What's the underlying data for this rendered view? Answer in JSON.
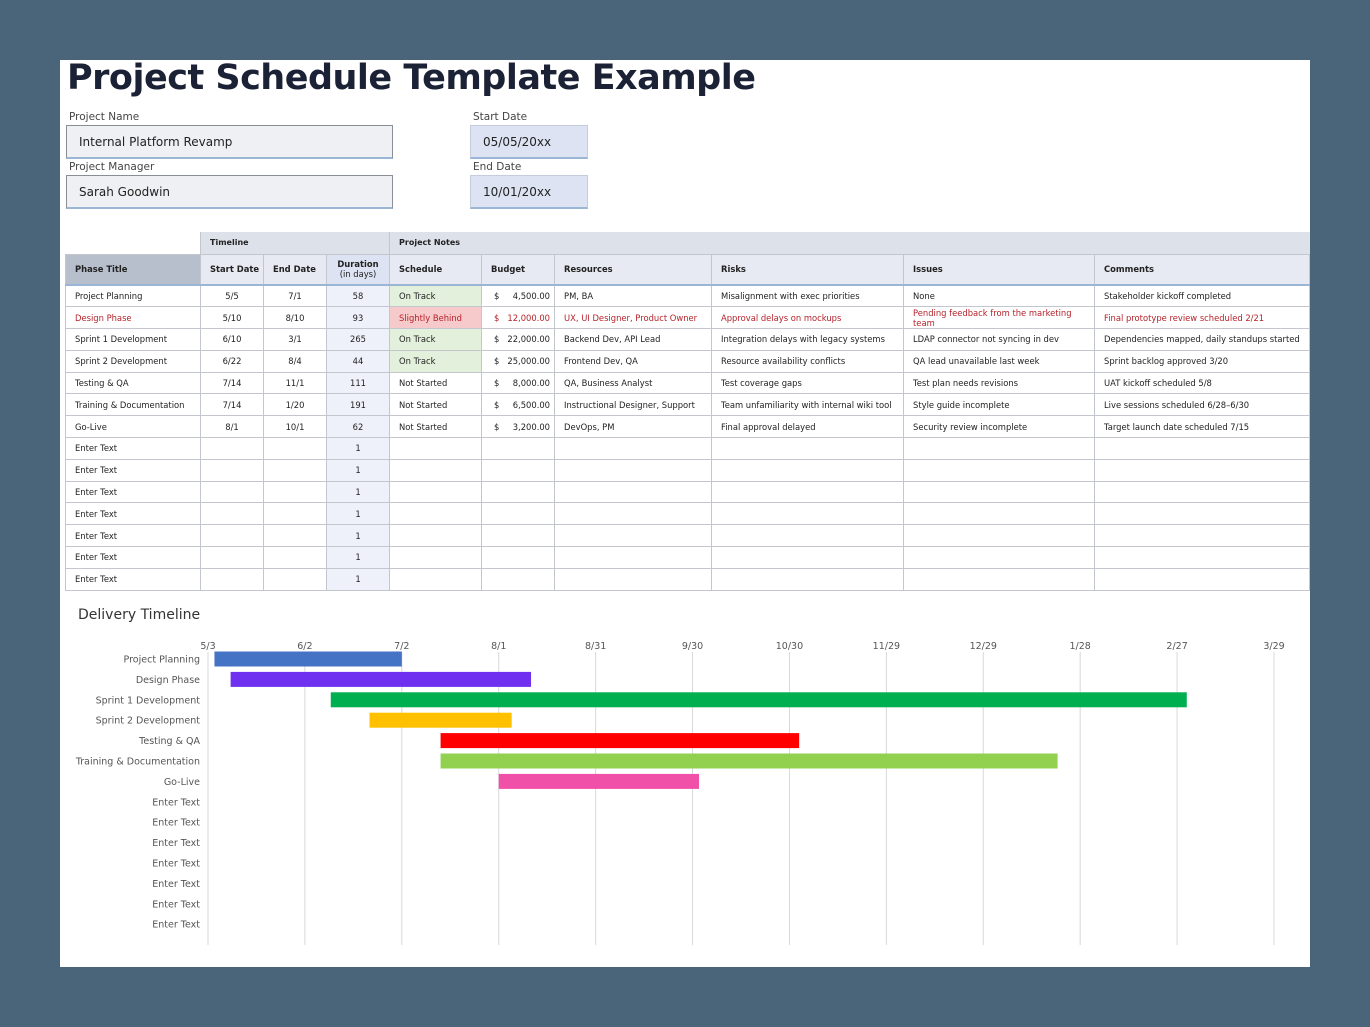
{
  "title": "Project Schedule Template Example",
  "fields": {
    "project_name_label": "Project Name",
    "project_name": "Internal Platform Revamp",
    "project_manager_label": "Project Manager",
    "project_manager": "Sarah Goodwin",
    "start_date_label": "Start Date",
    "start_date": "05/05/20xx",
    "end_date_label": "End Date",
    "end_date": "10/01/20xx"
  },
  "table": {
    "group_timeline": "Timeline",
    "group_notes": "Project Notes",
    "headers": {
      "phase": "Phase Title",
      "start": "Start Date",
      "end": "End Date",
      "duration_1": "Duration",
      "duration_2": "(in days)",
      "schedule": "Schedule",
      "budget": "Budget",
      "resources": "Resources",
      "risks": "Risks",
      "issues": "Issues",
      "comments": "Comments"
    },
    "currency_symbol": "$",
    "rows": [
      {
        "phase": "Project Planning",
        "start": "5/5",
        "end": "7/1",
        "duration": "58",
        "schedule": "On Track",
        "budget": "4,500.00",
        "resources": "PM, BA",
        "risks": "Misalignment with exec priorities",
        "issues": "None",
        "comments": "Stakeholder kickoff completed"
      },
      {
        "phase": "Design Phase",
        "start": "5/10",
        "end": "8/10",
        "duration": "93",
        "schedule": "Slightly Behind",
        "budget": "12,000.00",
        "resources": "UX, UI Designer, Product Owner",
        "risks": "Approval delays on mockups",
        "issues": "Pending feedback from the marketing team",
        "comments": "Final prototype review scheduled 2/21"
      },
      {
        "phase": "Sprint 1 Development",
        "start": "6/10",
        "end": "3/1",
        "duration": "265",
        "schedule": "On Track",
        "budget": "22,000.00",
        "resources": "Backend Dev, API Lead",
        "risks": "Integration delays with legacy systems",
        "issues": "LDAP connector not syncing in dev",
        "comments": "Dependencies mapped, daily standups started"
      },
      {
        "phase": "Sprint 2 Development",
        "start": "6/22",
        "end": "8/4",
        "duration": "44",
        "schedule": "On Track",
        "budget": "25,000.00",
        "resources": "Frontend Dev, QA",
        "risks": "Resource availability conflicts",
        "issues": "QA lead unavailable last week",
        "comments": "Sprint backlog approved 3/20"
      },
      {
        "phase": "Testing & QA",
        "start": "7/14",
        "end": "11/1",
        "duration": "111",
        "schedule": "Not Started",
        "budget": "8,000.00",
        "resources": "QA, Business Analyst",
        "risks": "Test coverage gaps",
        "issues": "Test plan needs revisions",
        "comments": "UAT kickoff scheduled 5/8"
      },
      {
        "phase": "Training & Documentation",
        "start": "7/14",
        "end": "1/20",
        "duration": "191",
        "schedule": "Not Started",
        "budget": "6,500.00",
        "resources": "Instructional Designer, Support",
        "risks": "Team unfamiliarity with internal wiki tool",
        "issues": "Style guide incomplete",
        "comments": "Live sessions scheduled 6/28–6/30"
      },
      {
        "phase": "Go-Live",
        "start": "8/1",
        "end": "10/1",
        "duration": "62",
        "schedule": "Not Started",
        "budget": "3,200.00",
        "resources": "DevOps, PM",
        "risks": "Final approval delayed",
        "issues": "Security review incomplete",
        "comments": "Target launch date scheduled 7/15"
      },
      {
        "phase": "Enter Text",
        "start": "",
        "end": "",
        "duration": "1",
        "schedule": "",
        "budget": "",
        "resources": "",
        "risks": "",
        "issues": "",
        "comments": ""
      },
      {
        "phase": "Enter Text",
        "start": "",
        "end": "",
        "duration": "1",
        "schedule": "",
        "budget": "",
        "resources": "",
        "risks": "",
        "issues": "",
        "comments": ""
      },
      {
        "phase": "Enter Text",
        "start": "",
        "end": "",
        "duration": "1",
        "schedule": "",
        "budget": "",
        "resources": "",
        "risks": "",
        "issues": "",
        "comments": ""
      },
      {
        "phase": "Enter Text",
        "start": "",
        "end": "",
        "duration": "1",
        "schedule": "",
        "budget": "",
        "resources": "",
        "risks": "",
        "issues": "",
        "comments": ""
      },
      {
        "phase": "Enter Text",
        "start": "",
        "end": "",
        "duration": "1",
        "schedule": "",
        "budget": "",
        "resources": "",
        "risks": "",
        "issues": "",
        "comments": ""
      },
      {
        "phase": "Enter Text",
        "start": "",
        "end": "",
        "duration": "1",
        "schedule": "",
        "budget": "",
        "resources": "",
        "risks": "",
        "issues": "",
        "comments": ""
      },
      {
        "phase": "Enter Text",
        "start": "",
        "end": "",
        "duration": "1",
        "schedule": "",
        "budget": "",
        "resources": "",
        "risks": "",
        "issues": "",
        "comments": ""
      }
    ]
  },
  "colors": {
    "background": "#4a6479",
    "on_track_fill": "#e3f0dc",
    "behind_fill": "#f6c9cb",
    "behind_text": "#b5232b"
  },
  "chart_data": {
    "type": "gantt",
    "title": "Delivery Timeline",
    "x_ticks": [
      "5/3",
      "6/2",
      "7/2",
      "8/1",
      "8/31",
      "9/30",
      "10/30",
      "11/29",
      "12/29",
      "1/28",
      "2/27",
      "3/29"
    ],
    "tick_interval_days": 30,
    "x_range_days": [
      0,
      330
    ],
    "grid": "vertical",
    "categories": [
      "Project Planning",
      "Design Phase",
      "Sprint 1 Development",
      "Sprint 2 Development",
      "Testing & QA",
      "Training & Documentation",
      "Go-Live",
      "Enter Text",
      "Enter Text",
      "Enter Text",
      "Enter Text",
      "Enter Text",
      "Enter Text",
      "Enter Text"
    ],
    "bars": [
      {
        "label": "Project Planning",
        "start_day": 2,
        "duration": 58,
        "color": "#4472c4"
      },
      {
        "label": "Design Phase",
        "start_day": 7,
        "duration": 93,
        "color": "#7030f0"
      },
      {
        "label": "Sprint 1 Development",
        "start_day": 38,
        "duration": 265,
        "color": "#00b050"
      },
      {
        "label": "Sprint 2 Development",
        "start_day": 50,
        "duration": 44,
        "color": "#ffc000"
      },
      {
        "label": "Testing & QA",
        "start_day": 72,
        "duration": 111,
        "color": "#ff0000"
      },
      {
        "label": "Training & Documentation",
        "start_day": 72,
        "duration": 191,
        "color": "#92d050"
      },
      {
        "label": "Go-Live",
        "start_day": 90,
        "duration": 62,
        "color": "#f050a8"
      }
    ]
  }
}
